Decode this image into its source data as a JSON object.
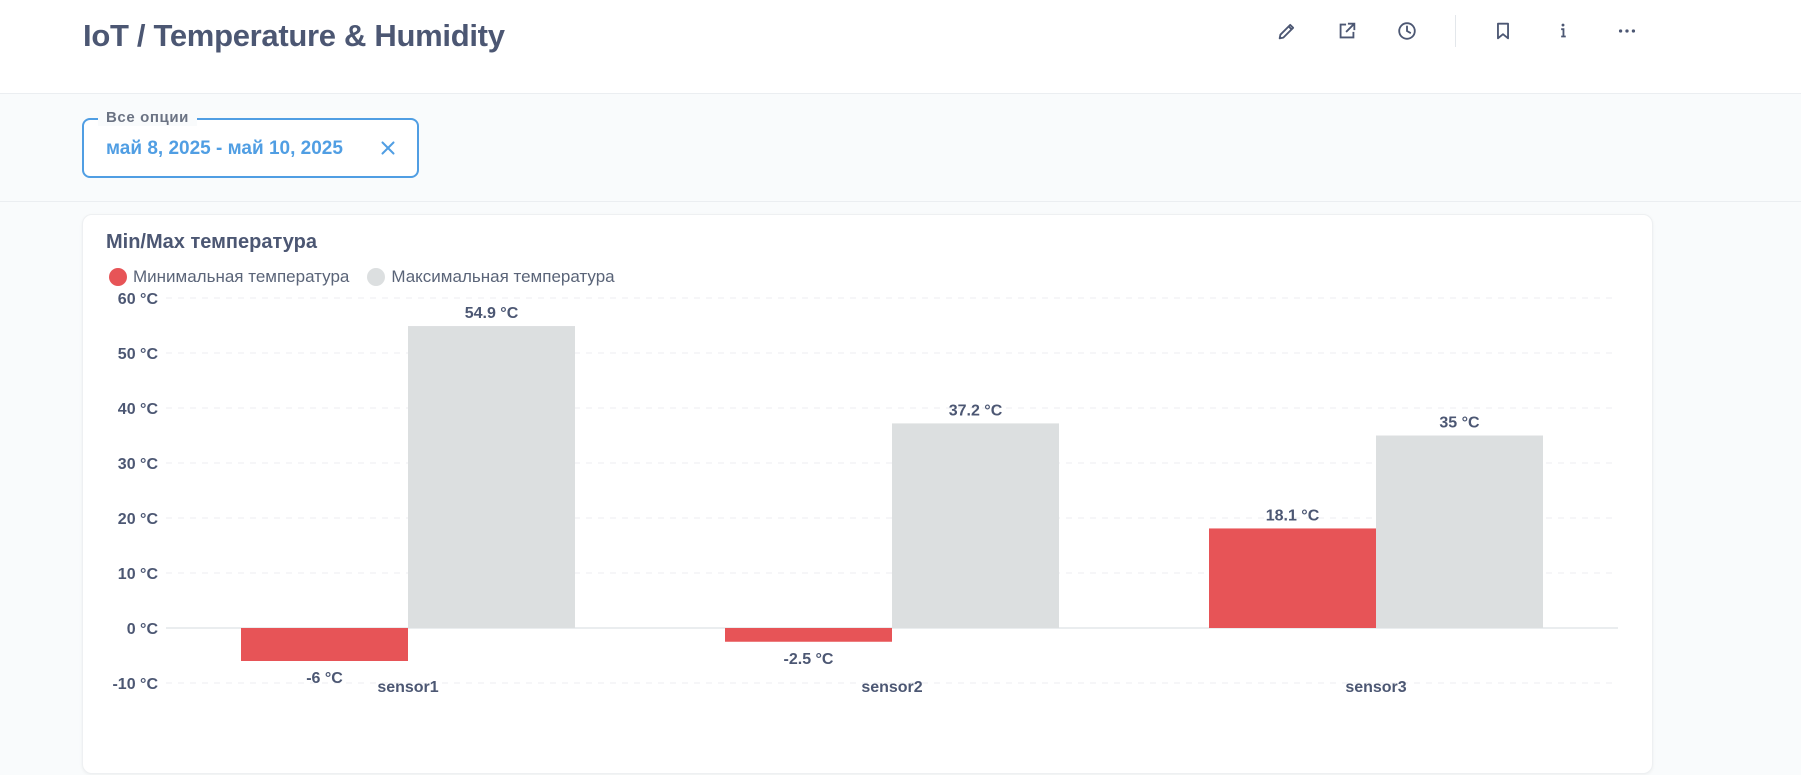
{
  "header": {
    "title": "IoT / Temperature & Humidity"
  },
  "toolbar": {
    "icons": [
      "pencil-icon",
      "share-icon",
      "clock-icon",
      "bookmark-icon",
      "info-icon",
      "more-icon"
    ]
  },
  "filter": {
    "legend": "Все опции",
    "value": "май 8, 2025 - май 10, 2025"
  },
  "colors": {
    "accent": "#509ee3",
    "min_series": "#e75457",
    "max_series": "#dcdfe0",
    "title_text": "#4c5773"
  },
  "card": {
    "title": "Min/Max температура"
  },
  "chart_data": {
    "type": "bar",
    "categories": [
      "sensor1",
      "sensor2",
      "sensor3"
    ],
    "series": [
      {
        "name": "Минимальная температура",
        "values": [
          -6,
          -2.5,
          18.1
        ],
        "color": "#e75457"
      },
      {
        "name": "Максимальная температура",
        "values": [
          54.9,
          37.2,
          35
        ],
        "color": "#dcdfe0"
      }
    ],
    "value_labels": [
      [
        "-6 °C",
        "-2.5 °C",
        "18.1 °C"
      ],
      [
        "54.9 °C",
        "37.2 °C",
        "35 °C"
      ]
    ],
    "yticks": [
      -10,
      0,
      10,
      20,
      30,
      40,
      50,
      60
    ],
    "ytick_labels": [
      "-10 °C",
      "0 °C",
      "10 °C",
      "20 °C",
      "30 °C",
      "40 °C",
      "50 °C",
      "60 °C"
    ],
    "ylim": [
      -10,
      60
    ],
    "grid": true,
    "legend_position": "top-left"
  }
}
